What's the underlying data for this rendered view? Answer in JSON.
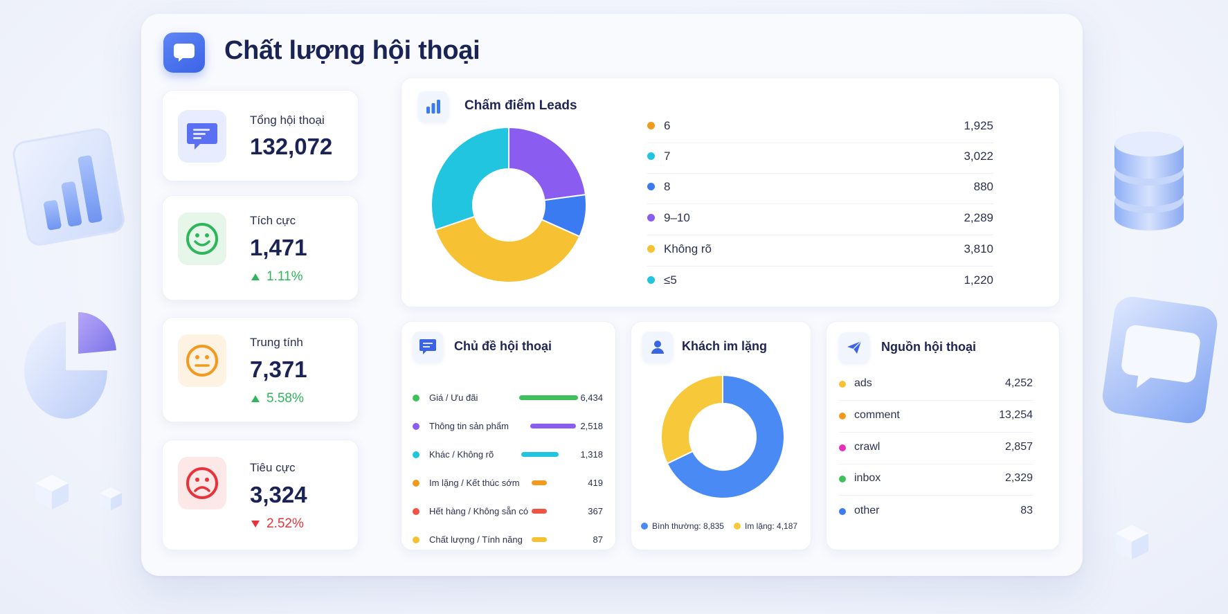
{
  "page": {
    "title": "Chất lượng hội thoại"
  },
  "kpis": [
    {
      "label": "Tổng hội thoại",
      "value": "132,072",
      "icon": "chat-lines-icon",
      "color": "#5b6ff2"
    },
    {
      "label": "Tích cực",
      "value": "1,471",
      "delta": "1.11%",
      "trend": "up",
      "icon": "smile-face-icon",
      "color": "#2fb55c"
    },
    {
      "label": "Trung tính",
      "value": "7,371",
      "delta": "5.58%",
      "trend": "up",
      "icon": "neutral-face-icon",
      "color": "#f29a1f"
    },
    {
      "label": "Tiêu cực",
      "value": "3,324",
      "delta": "2.52%",
      "trend": "down",
      "icon": "sad-face-icon",
      "color": "#e8333a"
    }
  ],
  "lead_scoring": {
    "title": "Chấm điểm Leads",
    "icon": "bar-chart-icon",
    "items": [
      {
        "label": "6",
        "value": "1,925",
        "color": "#f29a1f"
      },
      {
        "label": "7",
        "value": "3,022",
        "color": "#22c5e0"
      },
      {
        "label": "8",
        "value": "880",
        "color": "#3b7bf2"
      },
      {
        "label": "9–10",
        "value": "2,289",
        "color": "#8b5cf0"
      },
      {
        "label": "Không rõ",
        "value": "3,810",
        "color": "#f7c134"
      },
      {
        "label": "≤5",
        "value": "1,220",
        "color": "#22c5e0"
      }
    ]
  },
  "topics": {
    "title": "Chủ đề hội thoại",
    "icon": "chat-bubble-icon",
    "items": [
      {
        "label": "Giá / Ưu đãi",
        "value": "6,434",
        "color": "#3fc05a"
      },
      {
        "label": "Thông tin sản phẩm",
        "value": "2,518",
        "color": "#8b5cf0"
      },
      {
        "label": "Khác / Không rõ",
        "value": "1,318",
        "color": "#22c5e0"
      },
      {
        "label": "Im lặng / Kết thúc sớm",
        "value": "419",
        "color": "#f29a1f"
      },
      {
        "label": "Hết hàng / Không sẵn có",
        "value": "367",
        "color": "#f0533f"
      },
      {
        "label": "Chất lượng / Tính năng",
        "value": "87",
        "color": "#f7c134"
      }
    ]
  },
  "silent": {
    "title": "Khách im lặng",
    "icon": "user-icon",
    "legend": [
      {
        "label": "Bình thường: 8,835",
        "value": 8835,
        "color": "#4a8af4"
      },
      {
        "label": "Im lặng: 4,187",
        "value": 4187,
        "color": "#f7c93a"
      }
    ]
  },
  "sources": {
    "title": "Nguồn hội thoại",
    "icon": "send-icon",
    "items": [
      {
        "label": "ads",
        "value": "4,252",
        "color": "#f7c134"
      },
      {
        "label": "comment",
        "value": "13,254",
        "color": "#f29a1f"
      },
      {
        "label": "crawl",
        "value": "2,857",
        "color": "#e62fbf"
      },
      {
        "label": "inbox",
        "value": "2,329",
        "color": "#3fc05a"
      },
      {
        "label": "other",
        "value": "83",
        "color": "#3b7bf2"
      }
    ]
  }
}
